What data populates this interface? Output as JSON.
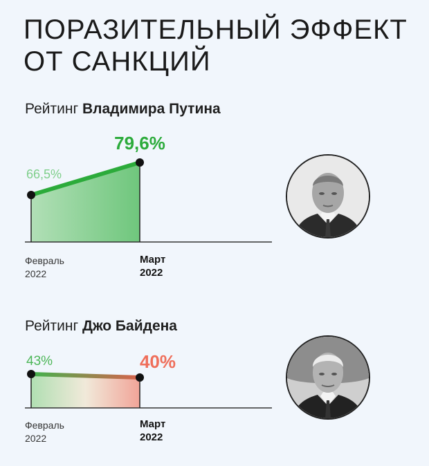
{
  "title": {
    "line1": "ПОРАЗИТЕЛЬНЫЙ ЭФФЕКТ",
    "line2": "ОТ САНКЦИЙ"
  },
  "colors": {
    "background": "#f1f6fc",
    "putin_line": "#2cab3b",
    "putin_label_start": "#7fcf8b",
    "putin_label_end": "#2cab3b",
    "biden_label_start": "#4cb657",
    "biden_label_end": "#ef6e5a"
  },
  "chart_data": [
    {
      "type": "line",
      "heading_prefix": "Рейтинг ",
      "heading_name": "Владимира Путина",
      "categories": [
        "Февраль 2022",
        "Март 2022"
      ],
      "x_labels": [
        {
          "month": "Февраль",
          "year": "2022"
        },
        {
          "month": "Март",
          "year": "2022"
        }
      ],
      "values": [
        66.5,
        79.6
      ],
      "value_labels": [
        "66,5%",
        "79,6%"
      ],
      "ylim": [
        40,
        85
      ],
      "area": true,
      "portrait_icon": "portrait-putin"
    },
    {
      "type": "line",
      "heading_prefix": "Рейтинг ",
      "heading_name": "Джо Байдена",
      "categories": [
        "Февраль 2022",
        "Март 2022"
      ],
      "x_labels": [
        {
          "month": "Февраль",
          "year": "2022"
        },
        {
          "month": "Март",
          "year": "2022"
        }
      ],
      "values": [
        43,
        40
      ],
      "value_labels": [
        "43%",
        "40%"
      ],
      "ylim": [
        0,
        100
      ],
      "area": true,
      "portrait_icon": "portrait-biden"
    }
  ]
}
